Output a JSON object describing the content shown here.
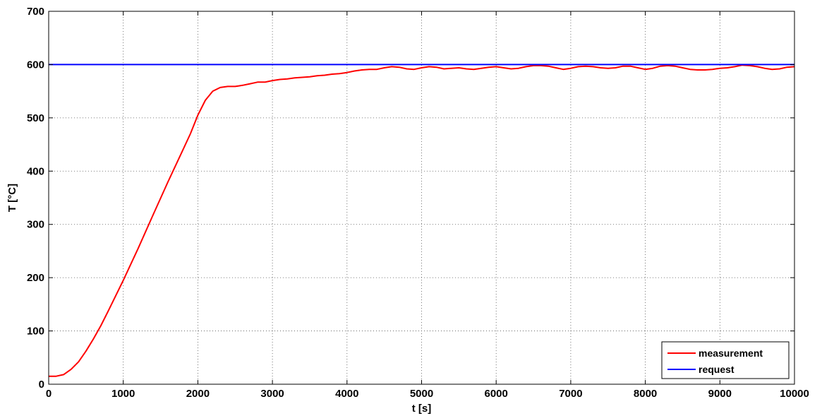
{
  "chart_data": {
    "type": "line",
    "title": "",
    "xlabel": "t [s]",
    "ylabel": "T [°C]",
    "xlim": [
      0,
      10000
    ],
    "ylim": [
      0,
      700
    ],
    "xticks": [
      0,
      1000,
      2000,
      3000,
      4000,
      5000,
      6000,
      7000,
      8000,
      9000,
      10000
    ],
    "yticks": [
      0,
      100,
      200,
      300,
      400,
      500,
      600,
      700
    ],
    "grid": true,
    "legend_position": "bottom-right",
    "series": [
      {
        "name": "measurement",
        "color": "#ff0000",
        "x": [
          0,
          100,
          200,
          300,
          400,
          500,
          600,
          700,
          800,
          1000,
          1200,
          1400,
          1600,
          1800,
          1900,
          2000,
          2100,
          2200,
          2300,
          2400,
          2500,
          2550,
          2600,
          2700,
          2800,
          2900,
          3000,
          3100,
          3200,
          3300,
          3400,
          3500,
          3600,
          3700,
          3800,
          3900,
          4000,
          4100,
          4200,
          4300,
          4400,
          4500,
          4600,
          4700,
          4800,
          4900,
          5000,
          5100,
          5200,
          5300,
          5400,
          5500,
          5600,
          5700,
          5800,
          5900,
          6000,
          6100,
          6200,
          6300,
          6400,
          6500,
          6600,
          6700,
          6800,
          6900,
          7000,
          7100,
          7200,
          7300,
          7400,
          7500,
          7600,
          7700,
          7800,
          7900,
          8000,
          8100,
          8200,
          8300,
          8400,
          8500,
          8600,
          8700,
          8800,
          8900,
          9000,
          9100,
          9200,
          9300,
          9400,
          9500,
          9600,
          9700,
          9800,
          9900,
          10000
        ],
        "y": [
          15,
          15,
          18,
          28,
          42,
          62,
          85,
          110,
          138,
          195,
          255,
          318,
          380,
          440,
          470,
          505,
          533,
          550,
          557,
          559,
          559,
          560,
          561,
          564,
          567,
          567,
          570,
          572,
          573,
          575,
          576,
          577,
          579,
          580,
          582,
          583,
          585,
          588,
          590,
          591,
          591,
          594,
          596,
          595,
          592,
          591,
          594,
          596,
          595,
          592,
          593,
          594,
          592,
          591,
          593,
          595,
          596,
          594,
          592,
          593,
          596,
          598,
          598,
          597,
          594,
          591,
          593,
          596,
          597,
          596,
          594,
          593,
          594,
          597,
          597,
          594,
          591,
          593,
          597,
          598,
          597,
          594,
          591,
          590,
          590,
          591,
          593,
          594,
          596,
          599,
          598,
          596,
          593,
          591,
          592,
          595,
          596
        ]
      },
      {
        "name": "request",
        "color": "#0000ff",
        "x": [
          0,
          10000
        ],
        "y": [
          600,
          600
        ]
      }
    ]
  }
}
